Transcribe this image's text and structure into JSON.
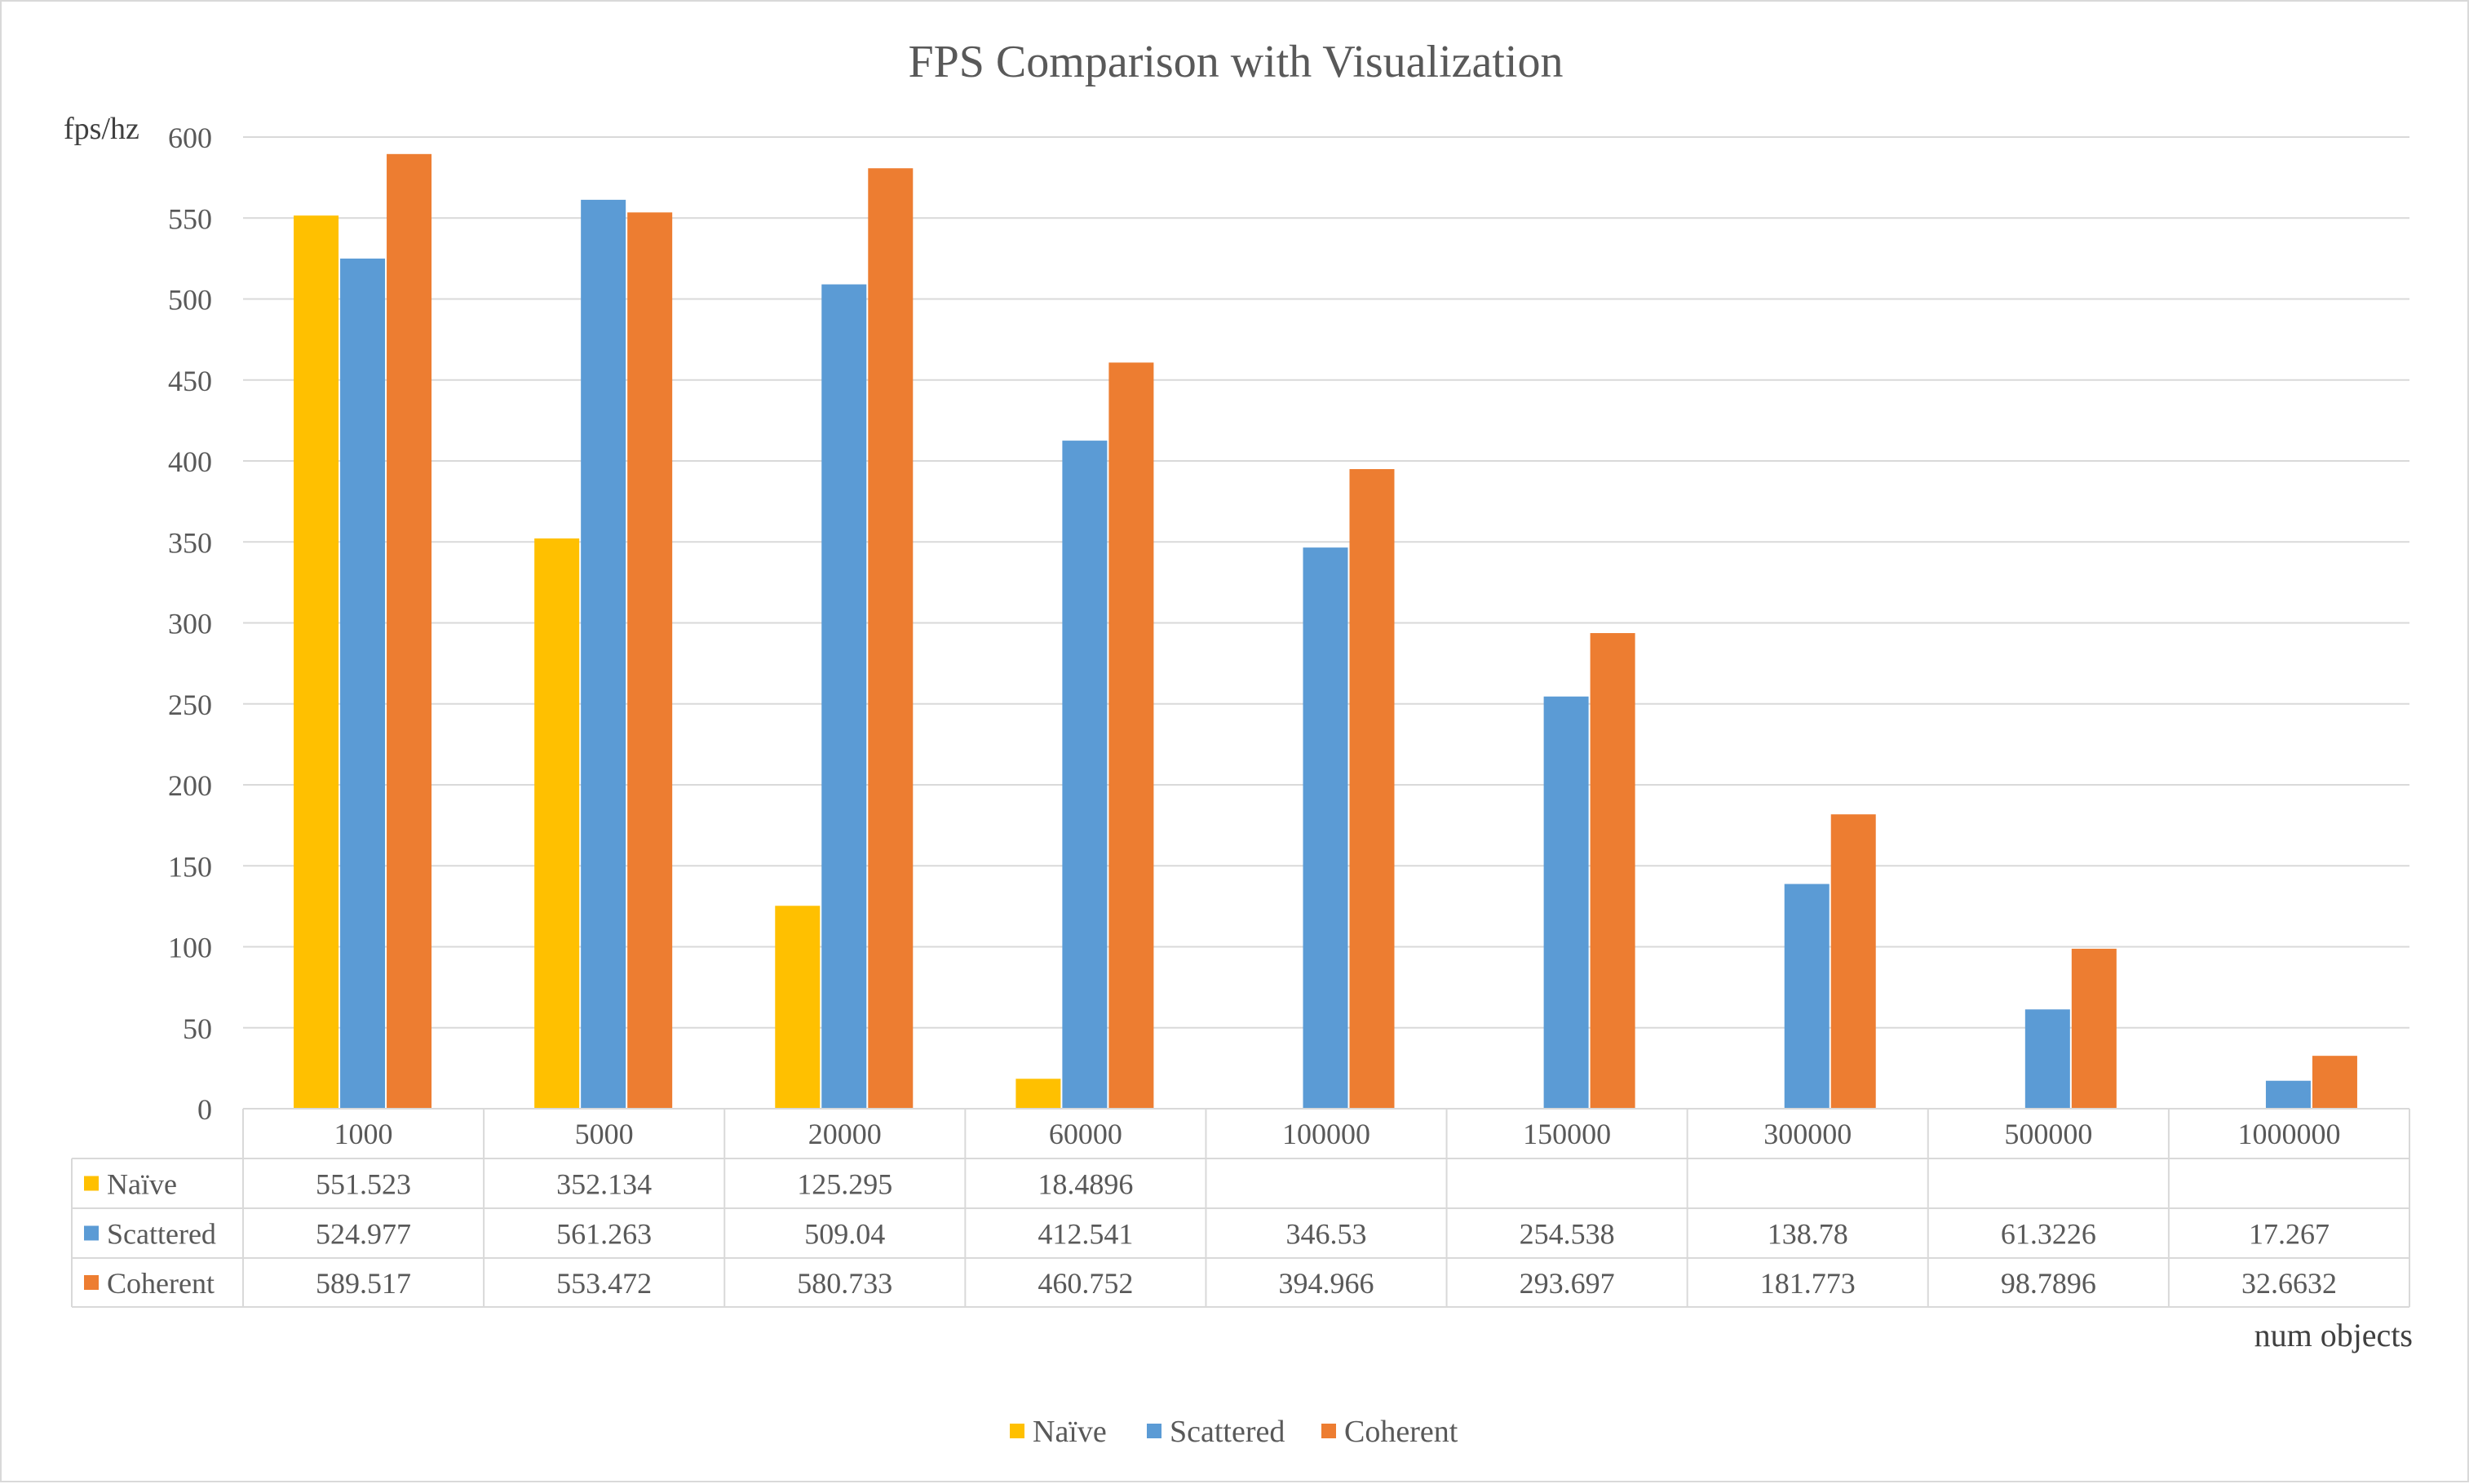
{
  "chart_data": {
    "type": "bar",
    "title": "FPS Comparison with Visualization",
    "ylabel": "fps/hz",
    "xlabel": "num objects",
    "ylim": [
      0,
      600
    ],
    "yticks": [
      0,
      50,
      100,
      150,
      200,
      250,
      300,
      350,
      400,
      450,
      500,
      550,
      600
    ],
    "grid": true,
    "legend_position": "bottom-center",
    "data_table": true,
    "categories": [
      "1000",
      "5000",
      "20000",
      "60000",
      "100000",
      "150000",
      "300000",
      "500000",
      "1000000"
    ],
    "series": [
      {
        "name": "Naïve",
        "color": "#ffc000",
        "values": [
          551.523,
          352.134,
          125.295,
          18.4896,
          null,
          null,
          null,
          null,
          null
        ],
        "labels": [
          "551.523",
          "352.134",
          "125.295",
          "18.4896",
          "",
          "",
          "",
          "",
          ""
        ]
      },
      {
        "name": "Scattered",
        "color": "#5b9bd5",
        "values": [
          524.977,
          561.263,
          509.04,
          412.541,
          346.53,
          254.538,
          138.78,
          61.3226,
          17.267
        ],
        "labels": [
          "524.977",
          "561.263",
          "509.04",
          "412.541",
          "346.53",
          "254.538",
          "138.78",
          "61.3226",
          "17.267"
        ]
      },
      {
        "name": "Coherent",
        "color": "#ed7d31",
        "values": [
          589.517,
          553.472,
          580.733,
          460.752,
          394.966,
          293.697,
          181.773,
          98.7896,
          32.6632
        ],
        "labels": [
          "589.517",
          "553.472",
          "580.733",
          "460.752",
          "394.966",
          "293.697",
          "181.773",
          "98.7896",
          "32.6632"
        ]
      }
    ]
  }
}
